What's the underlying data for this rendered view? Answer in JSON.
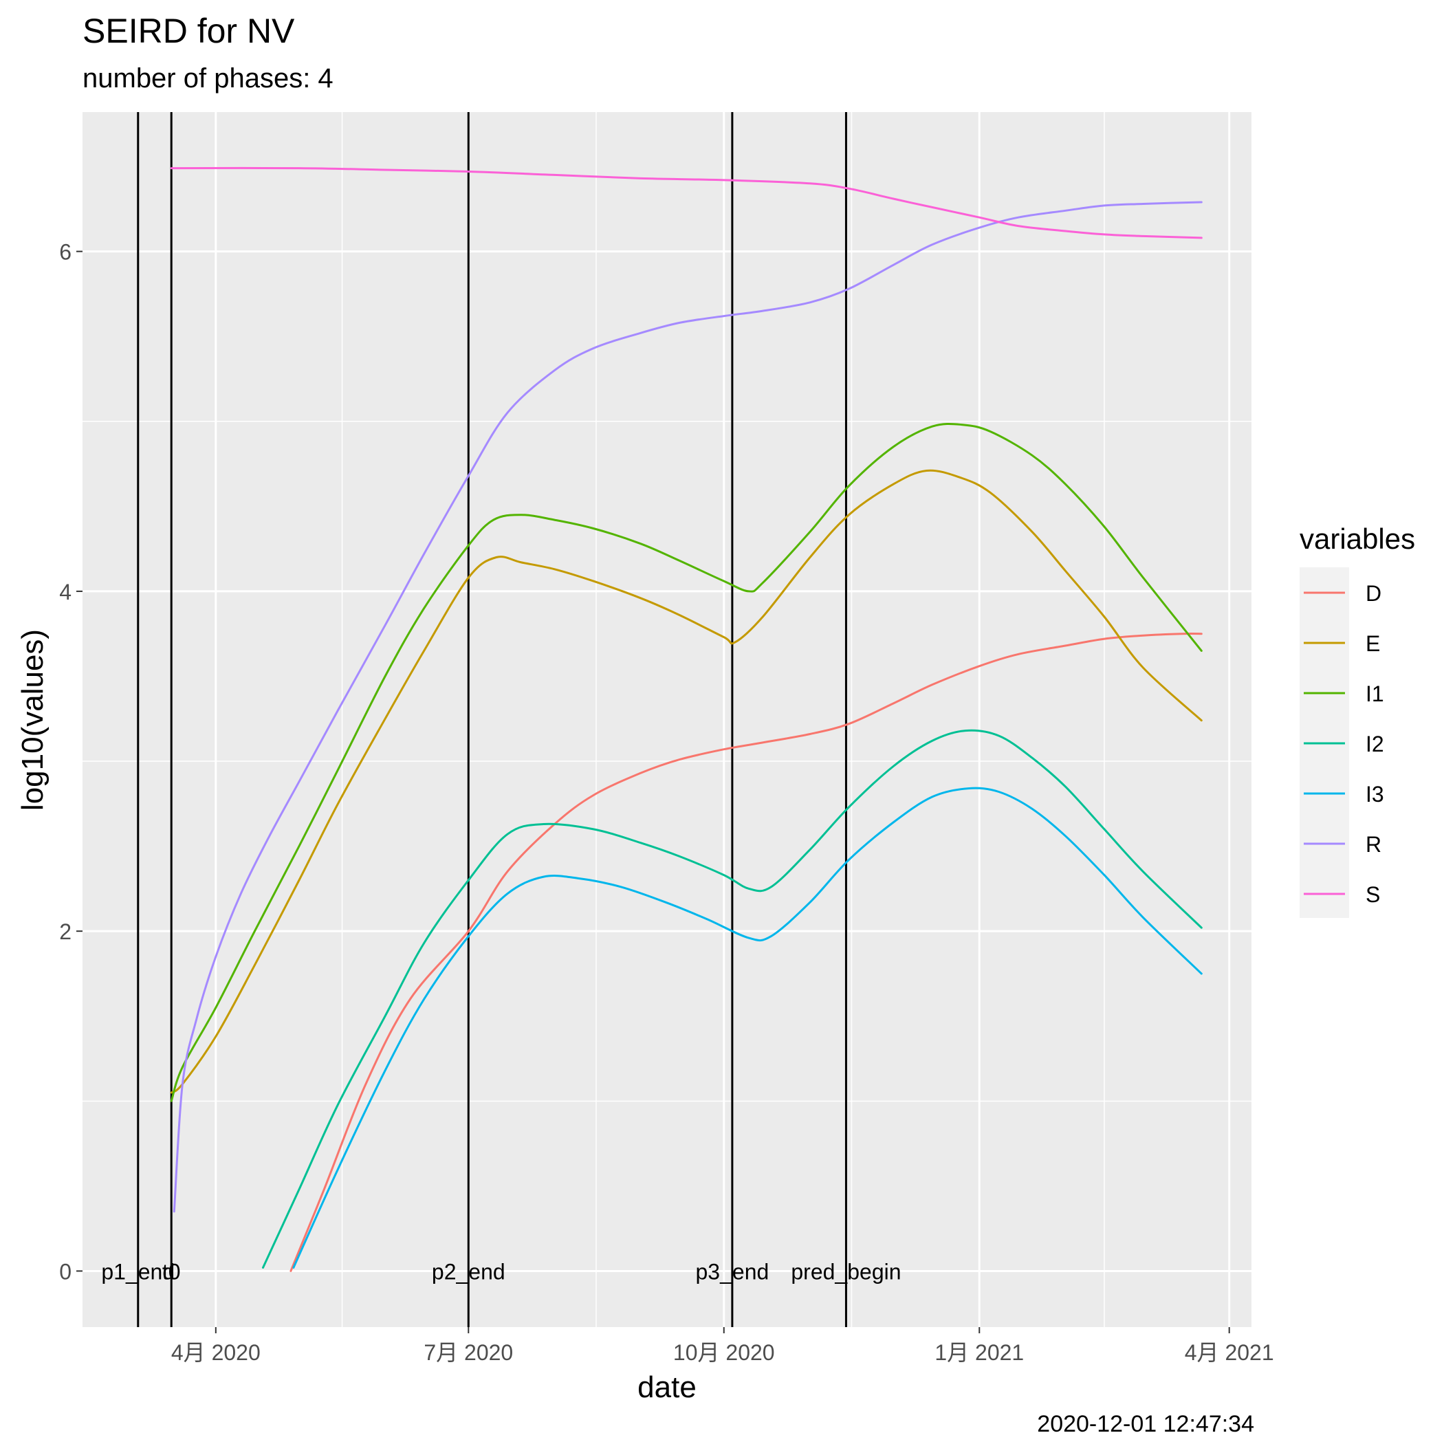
{
  "chart_data": {
    "type": "line",
    "title": "SEIRD for NV",
    "subtitle": "number of phases: 4",
    "xlabel": "date",
    "ylabel": "log10(values)",
    "caption": "2020-12-01 12:47:34",
    "legend_title": "variables",
    "legend_position": "right",
    "grid": true,
    "xlim": [
      "2020-02-13",
      "2021-04-09"
    ],
    "ylim": [
      -0.33,
      6.82
    ],
    "x_ticks": [
      {
        "date": "2020-04-01",
        "label": "4月 2020"
      },
      {
        "date": "2020-07-01",
        "label": "7月 2020"
      },
      {
        "date": "2020-10-01",
        "label": "10月 2020"
      },
      {
        "date": "2021-01-01",
        "label": "1月 2021"
      },
      {
        "date": "2021-04-01",
        "label": "4月 2021"
      }
    ],
    "y_ticks": [
      0,
      2,
      4,
      6
    ],
    "vlines": [
      {
        "date": "2020-03-04",
        "label": "p1_end"
      },
      {
        "date": "2020-03-16",
        "label": "t0"
      },
      {
        "date": "2020-07-01",
        "label": "p2_end"
      },
      {
        "date": "2020-10-04",
        "label": "p3_end"
      },
      {
        "date": "2020-11-14",
        "label": "pred_begin"
      }
    ],
    "series": [
      {
        "name": "D",
        "color": "#F8766D",
        "points": [
          [
            "2020-04-28",
            0.0
          ],
          [
            "2020-05-10",
            0.48
          ],
          [
            "2020-05-25",
            1.1
          ],
          [
            "2020-06-10",
            1.6
          ],
          [
            "2020-07-01",
            2.0
          ],
          [
            "2020-07-15",
            2.35
          ],
          [
            "2020-08-01",
            2.63
          ],
          [
            "2020-08-15",
            2.8
          ],
          [
            "2020-09-01",
            2.93
          ],
          [
            "2020-09-15",
            3.01
          ],
          [
            "2020-10-01",
            3.07
          ],
          [
            "2020-10-15",
            3.11
          ],
          [
            "2020-11-01",
            3.16
          ],
          [
            "2020-11-15",
            3.22
          ],
          [
            "2020-12-01",
            3.34
          ],
          [
            "2020-12-15",
            3.45
          ],
          [
            "2021-01-01",
            3.56
          ],
          [
            "2021-01-15",
            3.63
          ],
          [
            "2021-02-01",
            3.68
          ],
          [
            "2021-02-15",
            3.72
          ],
          [
            "2021-03-01",
            3.74
          ],
          [
            "2021-03-15",
            3.75
          ],
          [
            "2021-03-22",
            3.75
          ]
        ]
      },
      {
        "name": "E",
        "color": "#C49A00",
        "points": [
          [
            "2020-03-16",
            1.05
          ],
          [
            "2020-03-20",
            1.1
          ],
          [
            "2020-04-01",
            1.38
          ],
          [
            "2020-04-15",
            1.8
          ],
          [
            "2020-05-01",
            2.3
          ],
          [
            "2020-05-15",
            2.75
          ],
          [
            "2020-06-01",
            3.25
          ],
          [
            "2020-06-15",
            3.65
          ],
          [
            "2020-07-01",
            4.08
          ],
          [
            "2020-07-11",
            4.2
          ],
          [
            "2020-07-20",
            4.17
          ],
          [
            "2020-08-01",
            4.13
          ],
          [
            "2020-08-15",
            4.06
          ],
          [
            "2020-09-01",
            3.96
          ],
          [
            "2020-09-15",
            3.86
          ],
          [
            "2020-10-01",
            3.73
          ],
          [
            "2020-10-05",
            3.7
          ],
          [
            "2020-10-15",
            3.85
          ],
          [
            "2020-11-01",
            4.2
          ],
          [
            "2020-11-15",
            4.45
          ],
          [
            "2020-12-01",
            4.63
          ],
          [
            "2020-12-13",
            4.71
          ],
          [
            "2020-12-25",
            4.67
          ],
          [
            "2021-01-05",
            4.58
          ],
          [
            "2021-01-20",
            4.35
          ],
          [
            "2021-02-01",
            4.12
          ],
          [
            "2021-02-15",
            3.85
          ],
          [
            "2021-03-01",
            3.55
          ],
          [
            "2021-03-22",
            3.24
          ]
        ]
      },
      {
        "name": "I1",
        "color": "#53B400",
        "points": [
          [
            "2020-03-16",
            1.0
          ],
          [
            "2020-03-20",
            1.2
          ],
          [
            "2020-04-01",
            1.55
          ],
          [
            "2020-04-15",
            2.0
          ],
          [
            "2020-05-01",
            2.5
          ],
          [
            "2020-05-15",
            2.95
          ],
          [
            "2020-06-01",
            3.5
          ],
          [
            "2020-06-15",
            3.9
          ],
          [
            "2020-07-01",
            4.27
          ],
          [
            "2020-07-10",
            4.42
          ],
          [
            "2020-07-20",
            4.45
          ],
          [
            "2020-08-01",
            4.42
          ],
          [
            "2020-08-15",
            4.37
          ],
          [
            "2020-09-01",
            4.28
          ],
          [
            "2020-09-15",
            4.18
          ],
          [
            "2020-10-01",
            4.06
          ],
          [
            "2020-10-10",
            4.0
          ],
          [
            "2020-10-15",
            4.05
          ],
          [
            "2020-11-01",
            4.35
          ],
          [
            "2020-11-15",
            4.62
          ],
          [
            "2020-12-01",
            4.85
          ],
          [
            "2020-12-15",
            4.97
          ],
          [
            "2020-12-26",
            4.98
          ],
          [
            "2021-01-05",
            4.94
          ],
          [
            "2021-01-20",
            4.8
          ],
          [
            "2021-02-01",
            4.63
          ],
          [
            "2021-02-15",
            4.38
          ],
          [
            "2021-03-01",
            4.08
          ],
          [
            "2021-03-22",
            3.65
          ]
        ]
      },
      {
        "name": "I2",
        "color": "#00C094",
        "points": [
          [
            "2020-04-18",
            0.02
          ],
          [
            "2020-05-01",
            0.48
          ],
          [
            "2020-05-15",
            0.98
          ],
          [
            "2020-06-01",
            1.5
          ],
          [
            "2020-06-15",
            1.93
          ],
          [
            "2020-07-01",
            2.3
          ],
          [
            "2020-07-15",
            2.57
          ],
          [
            "2020-07-28",
            2.63
          ],
          [
            "2020-08-15",
            2.6
          ],
          [
            "2020-09-01",
            2.52
          ],
          [
            "2020-09-15",
            2.44
          ],
          [
            "2020-10-01",
            2.33
          ],
          [
            "2020-10-10",
            2.25
          ],
          [
            "2020-10-18",
            2.26
          ],
          [
            "2020-11-01",
            2.48
          ],
          [
            "2020-11-15",
            2.73
          ],
          [
            "2020-12-01",
            2.97
          ],
          [
            "2020-12-15",
            3.12
          ],
          [
            "2020-12-27",
            3.18
          ],
          [
            "2021-01-08",
            3.15
          ],
          [
            "2021-01-20",
            3.02
          ],
          [
            "2021-02-01",
            2.85
          ],
          [
            "2021-02-15",
            2.6
          ],
          [
            "2021-03-01",
            2.35
          ],
          [
            "2021-03-22",
            2.02
          ]
        ]
      },
      {
        "name": "I3",
        "color": "#00B6EB",
        "points": [
          [
            "2020-04-29",
            0.02
          ],
          [
            "2020-05-15",
            0.6
          ],
          [
            "2020-06-01",
            1.18
          ],
          [
            "2020-06-15",
            1.6
          ],
          [
            "2020-07-01",
            1.97
          ],
          [
            "2020-07-15",
            2.22
          ],
          [
            "2020-07-28",
            2.32
          ],
          [
            "2020-08-10",
            2.31
          ],
          [
            "2020-08-25",
            2.26
          ],
          [
            "2020-09-10",
            2.17
          ],
          [
            "2020-09-25",
            2.07
          ],
          [
            "2020-10-10",
            1.96
          ],
          [
            "2020-10-18",
            1.97
          ],
          [
            "2020-11-01",
            2.17
          ],
          [
            "2020-11-15",
            2.42
          ],
          [
            "2020-12-01",
            2.64
          ],
          [
            "2020-12-15",
            2.79
          ],
          [
            "2020-12-28",
            2.84
          ],
          [
            "2021-01-08",
            2.82
          ],
          [
            "2021-01-20",
            2.72
          ],
          [
            "2021-02-01",
            2.56
          ],
          [
            "2021-02-15",
            2.33
          ],
          [
            "2021-03-01",
            2.08
          ],
          [
            "2021-03-22",
            1.75
          ]
        ]
      },
      {
        "name": "R",
        "color": "#A58AFF",
        "points": [
          [
            "2020-03-17",
            0.35
          ],
          [
            "2020-03-20",
            1.1
          ],
          [
            "2020-03-25",
            1.48
          ],
          [
            "2020-04-01",
            1.85
          ],
          [
            "2020-04-10",
            2.22
          ],
          [
            "2020-04-20",
            2.55
          ],
          [
            "2020-05-01",
            2.88
          ],
          [
            "2020-05-15",
            3.3
          ],
          [
            "2020-06-01",
            3.8
          ],
          [
            "2020-06-15",
            4.22
          ],
          [
            "2020-07-01",
            4.68
          ],
          [
            "2020-07-15",
            5.05
          ],
          [
            "2020-08-01",
            5.3
          ],
          [
            "2020-08-15",
            5.43
          ],
          [
            "2020-09-01",
            5.52
          ],
          [
            "2020-09-15",
            5.58
          ],
          [
            "2020-10-01",
            5.62
          ],
          [
            "2020-10-15",
            5.65
          ],
          [
            "2020-11-01",
            5.7
          ],
          [
            "2020-11-15",
            5.78
          ],
          [
            "2020-12-01",
            5.92
          ],
          [
            "2020-12-15",
            6.04
          ],
          [
            "2021-01-01",
            6.14
          ],
          [
            "2021-01-15",
            6.2
          ],
          [
            "2021-02-01",
            6.24
          ],
          [
            "2021-02-15",
            6.27
          ],
          [
            "2021-03-01",
            6.28
          ],
          [
            "2021-03-22",
            6.29
          ]
        ]
      },
      {
        "name": "S",
        "color": "#FB61D7",
        "points": [
          [
            "2020-03-16",
            6.49
          ],
          [
            "2020-05-01",
            6.49
          ],
          [
            "2020-06-01",
            6.48
          ],
          [
            "2020-07-01",
            6.47
          ],
          [
            "2020-08-01",
            6.45
          ],
          [
            "2020-09-01",
            6.43
          ],
          [
            "2020-10-01",
            6.42
          ],
          [
            "2020-11-01",
            6.4
          ],
          [
            "2020-11-15",
            6.37
          ],
          [
            "2020-12-01",
            6.31
          ],
          [
            "2020-12-15",
            6.26
          ],
          [
            "2021-01-01",
            6.2
          ],
          [
            "2021-01-15",
            6.15
          ],
          [
            "2021-02-01",
            6.12
          ],
          [
            "2021-02-15",
            6.1
          ],
          [
            "2021-03-01",
            6.09
          ],
          [
            "2021-03-22",
            6.08
          ]
        ]
      }
    ]
  }
}
